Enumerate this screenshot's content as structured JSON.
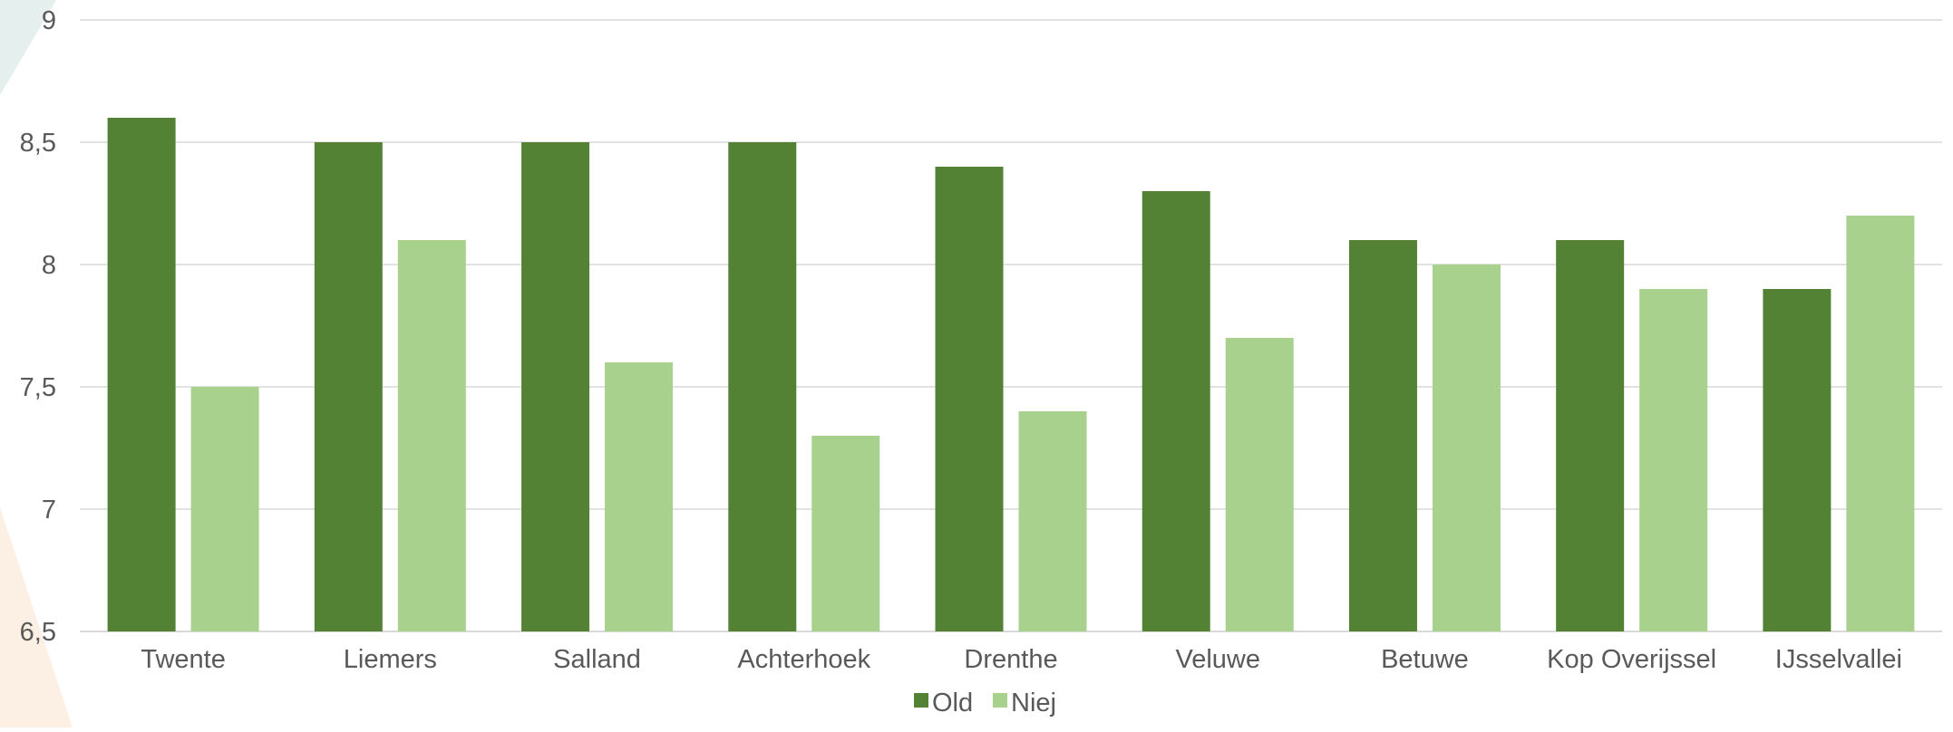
{
  "chart_data": {
    "type": "bar",
    "title": "",
    "xlabel": "",
    "ylabel": "",
    "categories": [
      "Twente",
      "Liemers",
      "Salland",
      "Achterhoek",
      "Drenthe",
      "Veluwe",
      "Betuwe",
      "Kop Overijssel",
      "IJsselvallei"
    ],
    "series": [
      {
        "name": "Old",
        "values": [
          8.6,
          8.5,
          8.5,
          8.5,
          8.4,
          8.3,
          8.1,
          8.1,
          7.9
        ],
        "color": "#548235"
      },
      {
        "name": "Niej",
        "values": [
          7.5,
          8.1,
          7.6,
          7.3,
          7.4,
          7.7,
          8.0,
          7.9,
          8.2
        ],
        "color": "#A9D18E"
      }
    ],
    "ylim": [
      6.5,
      9
    ],
    "yticks": [
      "6,5",
      "7",
      "7,5",
      "8",
      "8,5",
      "9"
    ],
    "ytick_values": [
      6.5,
      7,
      7.5,
      8,
      8.5,
      9
    ],
    "grid": true,
    "legend_position": "bottom"
  },
  "colors": {
    "gridline": "#d9d9d9",
    "axis_text": "#595959",
    "deco_teal": "#e4efee",
    "deco_peach": "#fcefe3"
  }
}
